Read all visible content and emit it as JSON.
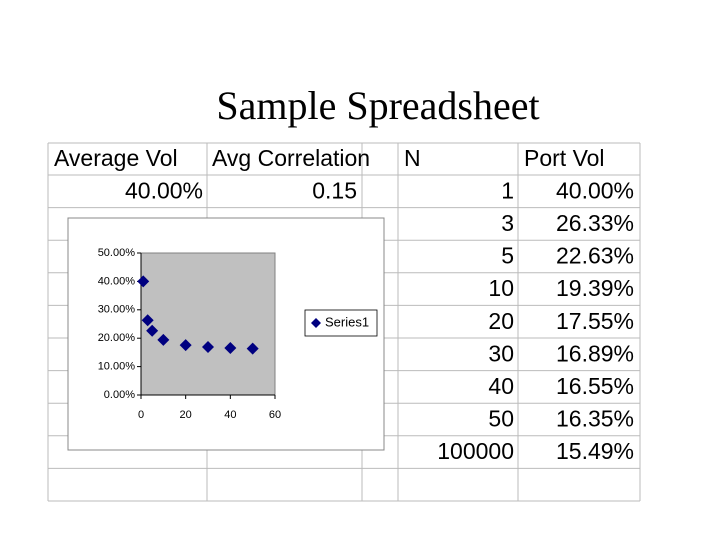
{
  "title": "Sample Spreadsheet",
  "table": {
    "header": [
      "Average Vol",
      "Avg Correlation",
      "N",
      "Port Vol"
    ],
    "rows": [
      {
        "average_vol": "40.00%",
        "avg_correlation": "0.15",
        "n": "1",
        "port_vol": "40.00%"
      },
      {
        "n": "3",
        "port_vol": "26.33%"
      },
      {
        "n": "5",
        "port_vol": "22.63%"
      },
      {
        "n": "10",
        "port_vol": "19.39%"
      },
      {
        "n": "20",
        "port_vol": "17.55%"
      },
      {
        "n": "30",
        "port_vol": "16.89%"
      },
      {
        "n": "40",
        "port_vol": "16.55%"
      },
      {
        "n": "50",
        "port_vol": "16.35%"
      },
      {
        "n": "100000",
        "port_vol": "15.49%"
      }
    ]
  },
  "chart_data": {
    "type": "scatter",
    "series": [
      {
        "name": "Series1",
        "color": "#000080",
        "x": [
          1,
          3,
          5,
          10,
          20,
          30,
          40,
          50
        ],
        "values": [
          40,
          26.33,
          22.63,
          19.39,
          17.55,
          16.89,
          16.55,
          16.35
        ]
      }
    ],
    "xlim": [
      0,
      60
    ],
    "xticks": [
      0,
      20,
      40,
      60
    ],
    "ylim": [
      0,
      50
    ],
    "yticks": [
      {
        "value": 0,
        "label": "0.00%"
      },
      {
        "value": 10,
        "label": "10.00%"
      },
      {
        "value": 20,
        "label": "20.00%"
      },
      {
        "value": 30,
        "label": "30.00%"
      },
      {
        "value": 40,
        "label": "40.00%"
      },
      {
        "value": 50,
        "label": "50.00%"
      }
    ],
    "plot_background": "#c0c0c0",
    "legend": "right"
  }
}
